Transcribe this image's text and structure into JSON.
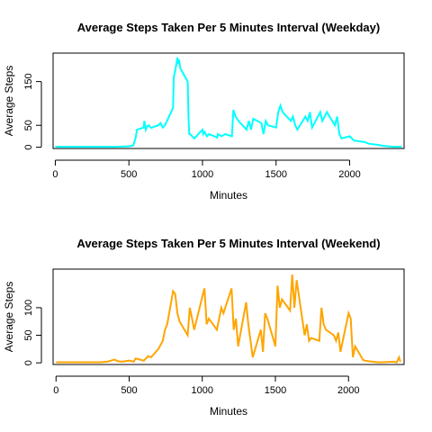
{
  "chart_data": [
    {
      "type": "line",
      "title": "Average Steps Taken Per 5 Minutes Interval (Weekday)",
      "xlabel": "Minutes",
      "ylabel": "Average Steps",
      "xlim": [
        -15,
        2370
      ],
      "ylim": [
        -3,
        215
      ],
      "xticks": [
        0,
        500,
        1000,
        1500,
        2000
      ],
      "yticks": [
        0,
        50,
        150
      ],
      "color": "#00FFFF",
      "grid": false,
      "series": [
        {
          "x": [
            0,
            100,
            200,
            300,
            400,
            500,
            530,
            545,
            555,
            600,
            605,
            615,
            625,
            635,
            650,
            700,
            715,
            730,
            745,
            800,
            805,
            815,
            825,
            830,
            835,
            840,
            850,
            900,
            905,
            910,
            915,
            930,
            945,
            1000,
            1005,
            1015,
            1030,
            1045,
            1100,
            1105,
            1130,
            1155,
            1200,
            1210,
            1225,
            1245,
            1300,
            1315,
            1330,
            1345,
            1400,
            1415,
            1430,
            1445,
            1500,
            1515,
            1530,
            1545,
            1600,
            1615,
            1630,
            1645,
            1700,
            1715,
            1730,
            1745,
            1800,
            1815,
            1830,
            1845,
            1900,
            1915,
            1930,
            1945,
            2000,
            2015,
            2030,
            2100,
            2130,
            2200,
            2230,
            2300,
            2355
          ],
          "values": [
            1,
            1,
            1,
            1,
            1,
            2,
            4,
            20,
            40,
            45,
            60,
            40,
            48,
            50,
            44,
            50,
            55,
            45,
            50,
            90,
            160,
            175,
            195,
            205,
            190,
            200,
            180,
            150,
            70,
            30,
            30,
            25,
            20,
            40,
            30,
            35,
            25,
            30,
            22,
            30,
            25,
            30,
            25,
            85,
            70,
            60,
            40,
            60,
            40,
            65,
            55,
            30,
            60,
            50,
            45,
            80,
            95,
            80,
            60,
            70,
            50,
            40,
            70,
            60,
            80,
            45,
            80,
            60,
            70,
            80,
            50,
            70,
            30,
            20,
            25,
            20,
            15,
            12,
            8,
            5,
            3,
            1,
            1
          ]
        }
      ]
    },
    {
      "type": "line",
      "title": "Average Steps Taken Per 5 Minutes Interval (Weekend)",
      "xlabel": "Minutes",
      "ylabel": "Average Steps",
      "xlim": [
        -20,
        2380
      ],
      "ylim": [
        -3,
        170
      ],
      "xticks": [
        0,
        500,
        1000,
        1500,
        2000
      ],
      "yticks": [
        0,
        50,
        100
      ],
      "color": "#FFA500",
      "grid": false,
      "series": [
        {
          "x": [
            0,
            100,
            200,
            300,
            350,
            400,
            420,
            450,
            500,
            530,
            545,
            600,
            630,
            650,
            700,
            730,
            745,
            760,
            800,
            815,
            830,
            845,
            900,
            915,
            930,
            945,
            1000,
            1015,
            1030,
            1045,
            1100,
            1130,
            1145,
            1200,
            1215,
            1230,
            1245,
            1300,
            1315,
            1330,
            1345,
            1400,
            1415,
            1430,
            1445,
            1500,
            1515,
            1530,
            1545,
            1600,
            1615,
            1630,
            1645,
            1700,
            1715,
            1730,
            1745,
            1800,
            1815,
            1830,
            1845,
            1900,
            1915,
            1930,
            1945,
            2000,
            2015,
            2030,
            2045,
            2100,
            2130,
            2200,
            2230,
            2300,
            2330,
            2345,
            2355
          ],
          "values": [
            1,
            1,
            1,
            1,
            2,
            6,
            3,
            2,
            4,
            2,
            8,
            4,
            12,
            10,
            25,
            40,
            60,
            70,
            130,
            125,
            90,
            75,
            50,
            100,
            80,
            60,
            120,
            135,
            70,
            80,
            60,
            100,
            90,
            135,
            60,
            80,
            30,
            110,
            70,
            40,
            10,
            60,
            20,
            90,
            80,
            30,
            140,
            100,
            115,
            95,
            160,
            100,
            150,
            50,
            70,
            40,
            45,
            40,
            100,
            70,
            60,
            50,
            40,
            55,
            20,
            90,
            80,
            10,
            30,
            5,
            3,
            1,
            1,
            2,
            1,
            10,
            2
          ]
        }
      ]
    }
  ]
}
